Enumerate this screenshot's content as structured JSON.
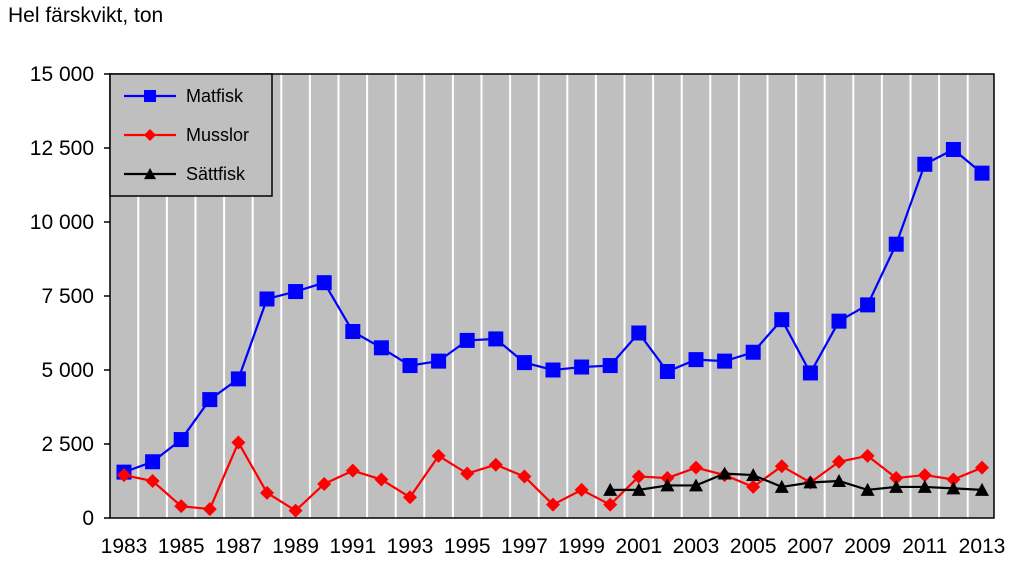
{
  "chart_data": {
    "type": "line",
    "title": "",
    "ylabel": "Hel färskvikt, ton",
    "xlabel": "",
    "ylim": [
      0,
      15000
    ],
    "yticks": [
      0,
      2500,
      5000,
      7500,
      10000,
      12500,
      15000
    ],
    "ytick_labels": [
      "0",
      "2 500",
      "5 000",
      "7 500",
      "10 000",
      "12 500",
      "15 000"
    ],
    "xlim": [
      1983,
      2013
    ],
    "xtick_labels": [
      "1983",
      "1985",
      "1987",
      "1989",
      "1991",
      "1993",
      "1995",
      "1997",
      "1999",
      "2001",
      "2003",
      "2005",
      "2007",
      "2009",
      "2011",
      "2013"
    ],
    "grid": "vertical",
    "legend_position": "top-left",
    "series": [
      {
        "name": "Matfisk",
        "color": "#0000ff",
        "marker": "square",
        "x": [
          1983,
          1984,
          1985,
          1986,
          1987,
          1988,
          1989,
          1990,
          1991,
          1992,
          1993,
          1994,
          1995,
          1996,
          1997,
          1998,
          1999,
          2000,
          2001,
          2002,
          2003,
          2004,
          2005,
          2006,
          2007,
          2008,
          2009,
          2010,
          2011,
          2012,
          2013
        ],
        "values": [
          1550,
          1900,
          2650,
          4000,
          4700,
          7400,
          7650,
          7950,
          6300,
          5750,
          5150,
          5300,
          6000,
          6050,
          5250,
          5000,
          5100,
          5150,
          6250,
          4950,
          5350,
          5300,
          5600,
          6700,
          4900,
          6650,
          7200,
          9250,
          11950,
          12450,
          11650
        ]
      },
      {
        "name": "Musslor",
        "color": "#ff0000",
        "marker": "diamond",
        "x": [
          1983,
          1984,
          1985,
          1986,
          1987,
          1988,
          1989,
          1990,
          1991,
          1992,
          1993,
          1994,
          1995,
          1996,
          1997,
          1998,
          1999,
          2000,
          2001,
          2002,
          2003,
          2004,
          2005,
          2006,
          2007,
          2008,
          2009,
          2010,
          2011,
          2012,
          2013
        ],
        "values": [
          1450,
          1250,
          400,
          300,
          2550,
          850,
          250,
          1150,
          1600,
          1300,
          700,
          2100,
          1500,
          1800,
          1400,
          450,
          950,
          450,
          1400,
          1350,
          1700,
          1450,
          1050,
          1750,
          1200,
          1900,
          2100,
          1350,
          1450,
          1300,
          1700
        ]
      },
      {
        "name": "Sättfisk",
        "color": "#000000",
        "marker": "triangle",
        "x": [
          2000,
          2001,
          2002,
          2003,
          2004,
          2005,
          2006,
          2007,
          2008,
          2009,
          2010,
          2011,
          2012,
          2013
        ],
        "values": [
          950,
          950,
          1100,
          1100,
          1500,
          1450,
          1050,
          1200,
          1250,
          950,
          1050,
          1050,
          1000,
          950
        ]
      }
    ]
  }
}
